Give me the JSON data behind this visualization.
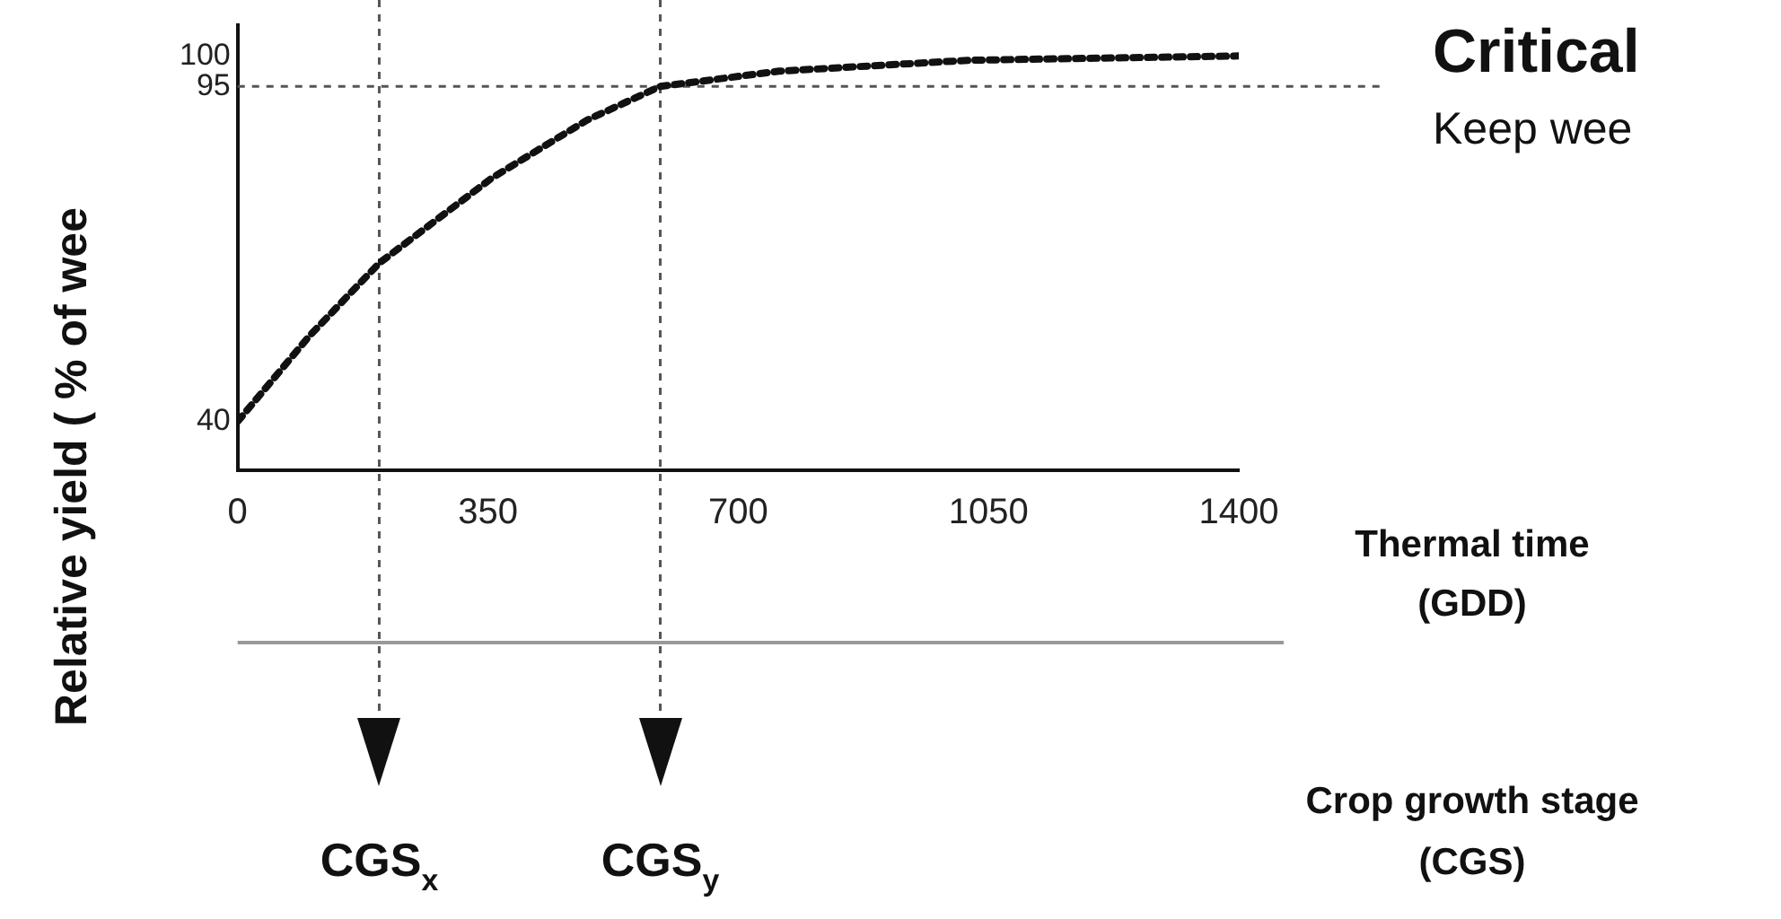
{
  "chart_data": {
    "type": "line",
    "title": "Critical",
    "subtitle": "Keep wee",
    "ylabel": "Relative yield ( % of wee",
    "xlabel": "Thermal time\n(GDD)",
    "annotations": [
      "Crop growth stage\n(CGS)"
    ],
    "x": [
      0,
      100,
      198,
      356,
      489,
      591,
      757,
      1024,
      1400
    ],
    "series": [
      {
        "color": "#111111",
        "values": [
          40,
          54,
          66,
          80,
          89.5,
          95,
          97.5,
          99.3,
          100
        ]
      }
    ],
    "xlim": [
      0,
      1400
    ],
    "xticks": [
      0,
      350,
      700,
      1050,
      1400
    ],
    "ylim": [
      32,
      105
    ],
    "yticks": [
      40,
      95,
      100
    ],
    "line_style": "dotted",
    "marker": "none",
    "grid": false,
    "legend": false,
    "ref_lines": [
      {
        "axis": "y",
        "value": 95,
        "color": "#555555",
        "line_style": "dotted"
      },
      {
        "axis": "x",
        "value": 198,
        "label": "CGS$_{x}$",
        "color": "#555555",
        "line_style": "dotted"
      },
      {
        "axis": "x",
        "value": 591,
        "label": "CGS$_{y}$",
        "color": "#555555",
        "line_style": "dotted"
      }
    ]
  }
}
